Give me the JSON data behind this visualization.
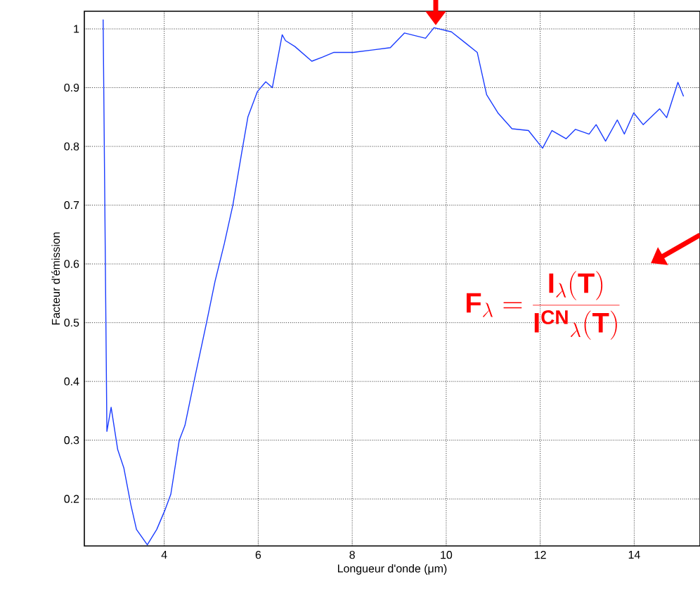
{
  "chart_data": {
    "type": "line",
    "xlabel": "Longueur d'onde (μm)",
    "ylabel": "Facteur d'émission",
    "annotations": [
      "\\mathbf{F_{\\lambda}=\\frac{I_{\\lambda}(T)}{I^{CN}{}_{\\lambda}(T)}}"
    ],
    "series": [
      {
        "color": "#1a3cff",
        "x": [
          2.7,
          2.78,
          2.87,
          3.01,
          3.14,
          3.29,
          3.41,
          3.64,
          3.84,
          4.01,
          4.14,
          4.32,
          4.44,
          4.66,
          4.9,
          5.08,
          5.28,
          5.46,
          5.65,
          5.78,
          5.98,
          6.16,
          6.3,
          6.51,
          6.58,
          6.78,
          7.14,
          7.37,
          7.61,
          8.02,
          8.42,
          8.81,
          9.11,
          9.56,
          9.74,
          10.11,
          10.41,
          10.66,
          10.86,
          11.1,
          11.4,
          11.75,
          12.05,
          12.25,
          12.55,
          12.75,
          13.04,
          13.19,
          13.39,
          13.64,
          13.79,
          13.99,
          14.19,
          14.54,
          14.69,
          14.93,
          15.05
        ],
        "values": [
          1.016,
          0.315,
          0.356,
          0.284,
          0.253,
          0.19,
          0.148,
          0.122,
          0.148,
          0.18,
          0.208,
          0.3,
          0.325,
          0.41,
          0.5,
          0.57,
          0.635,
          0.7,
          0.79,
          0.85,
          0.893,
          0.91,
          0.9,
          0.99,
          0.98,
          0.97,
          0.945,
          0.952,
          0.96,
          0.96,
          0.964,
          0.968,
          0.993,
          0.984,
          1.002,
          0.995,
          0.976,
          0.96,
          0.888,
          0.857,
          0.83,
          0.827,
          0.797,
          0.827,
          0.813,
          0.829,
          0.821,
          0.837,
          0.809,
          0.845,
          0.821,
          0.857,
          0.837,
          0.864,
          0.849,
          0.909,
          0.885
        ]
      }
    ],
    "xlim": [
      2.3,
      15.4
    ],
    "ylim": [
      0.12,
      1.03
    ],
    "xticks": [
      4,
      6,
      8,
      10,
      12,
      14
    ],
    "yticks": [
      0.2,
      0.3,
      0.4,
      0.5,
      0.6,
      0.7,
      0.8,
      0.9,
      1
    ],
    "grid": true,
    "line_style": "solid"
  }
}
